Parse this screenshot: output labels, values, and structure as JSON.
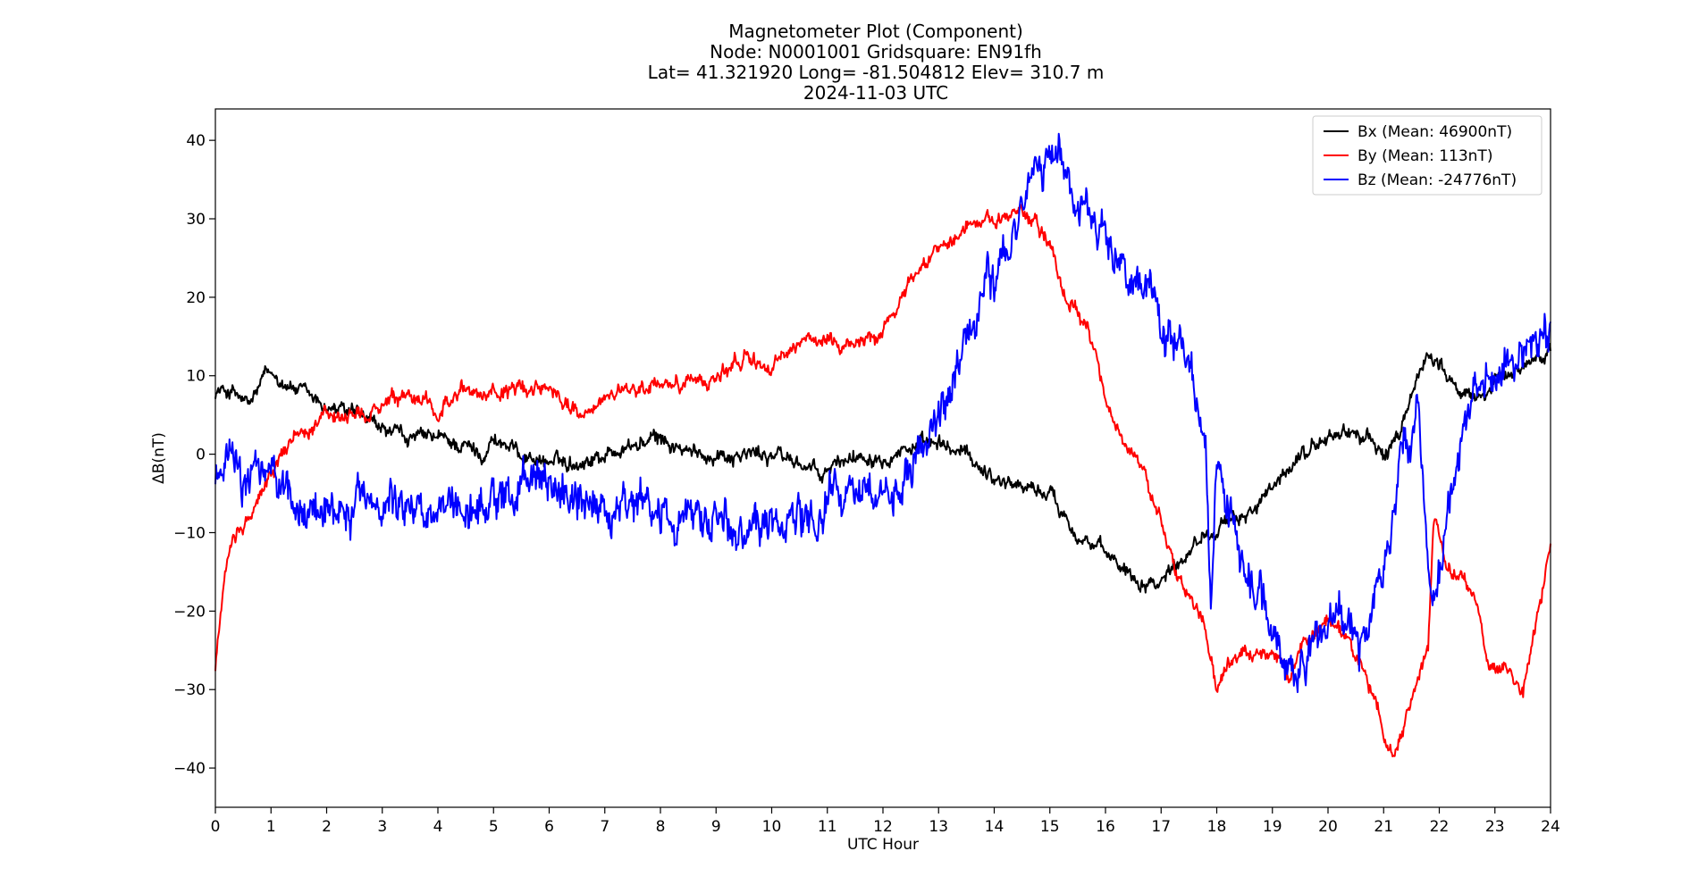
{
  "chart_data": {
    "type": "line",
    "title_lines": [
      "Magnetometer Plot (Component)",
      "Node:  N0001001     Gridsquare:  EN91fh",
      "Lat= 41.321920    Long= -81.504812    Elev= 310.7 m",
      "2024-11-03  UTC"
    ],
    "xlabel": "UTC Hour",
    "ylabel": "ΔB(nT)",
    "xlim": [
      0,
      24
    ],
    "ylim": [
      -45,
      44
    ],
    "xticks": [
      0,
      1,
      2,
      3,
      4,
      5,
      6,
      7,
      8,
      9,
      10,
      11,
      12,
      13,
      14,
      15,
      16,
      17,
      18,
      19,
      20,
      21,
      22,
      23,
      24
    ],
    "yticks": [
      40,
      30,
      20,
      10,
      0,
      -10,
      -20,
      -30,
      -40
    ],
    "ytick_labels": [
      "40",
      "30",
      "20",
      "10",
      "0",
      "−10",
      "−20",
      "−30",
      "−40"
    ],
    "grid": false,
    "legend_position": "top-right",
    "series": [
      {
        "name": "Bx (Mean: 46900nT)",
        "color": "#000000",
        "noise": 0.9,
        "x": [
          0,
          0.3,
          0.6,
          0.9,
          1.1,
          1.5,
          2.0,
          2.5,
          3.0,
          3.5,
          4.0,
          4.5,
          4.8,
          5.0,
          5.5,
          6.0,
          6.5,
          7.0,
          7.5,
          8.0,
          8.5,
          9.0,
          9.5,
          10.0,
          10.5,
          10.9,
          11.2,
          11.6,
          12.0,
          12.5,
          13.0,
          13.5,
          14.0,
          14.5,
          15.0,
          15.5,
          16.0,
          16.3,
          16.6,
          17.0,
          17.5,
          17.8,
          18.0,
          18.3,
          18.6,
          19.0,
          19.5,
          20.0,
          20.3,
          20.7,
          21.0,
          21.3,
          21.5,
          21.8,
          22.0,
          22.3,
          22.6,
          23.0,
          23.5,
          24.0
        ],
        "y": [
          8,
          8,
          6,
          10,
          10,
          8,
          6,
          5,
          3,
          2,
          2,
          1,
          0,
          2,
          0,
          -1,
          -1,
          0,
          1,
          2,
          0,
          0,
          0,
          0,
          -1,
          -3,
          -1,
          0,
          0,
          1,
          1,
          0,
          -3,
          -4,
          -5,
          -10,
          -13,
          -14,
          -16,
          -16,
          -12,
          -10,
          -9,
          -9,
          -7,
          -5,
          0,
          2,
          3,
          2,
          0,
          2,
          8,
          13,
          12,
          8,
          7,
          9,
          11,
          14
        ]
      },
      {
        "name": "By (Mean: 113nT)",
        "color": "#ff0000",
        "noise": 0.9,
        "x": [
          0,
          0.1,
          0.3,
          0.6,
          0.9,
          1.2,
          1.5,
          2.0,
          2.5,
          3.0,
          3.5,
          4.0,
          4.5,
          5.0,
          5.5,
          6.0,
          6.5,
          7.0,
          7.5,
          8.0,
          8.5,
          9.0,
          9.5,
          10.0,
          10.5,
          11.0,
          11.5,
          12.0,
          12.5,
          13.0,
          13.5,
          14.0,
          14.5,
          14.8,
          15.0,
          15.3,
          15.7,
          16.0,
          16.5,
          17.0,
          17.3,
          17.5,
          17.8,
          18.0,
          18.3,
          18.7,
          19.0,
          19.3,
          19.6,
          20.0,
          20.3,
          20.7,
          21.0,
          21.2,
          21.5,
          21.8,
          21.9,
          22.2,
          22.6,
          22.9,
          23.2,
          23.5,
          24.0
        ],
        "y": [
          -27,
          -20,
          -10,
          -8,
          -4,
          0,
          3,
          5,
          4,
          6,
          7,
          6,
          8,
          8,
          8,
          9,
          5,
          7,
          8,
          9,
          9,
          10,
          12,
          11,
          14,
          15,
          14,
          16,
          22,
          27,
          29,
          30,
          31,
          29,
          27,
          20,
          15,
          7,
          0,
          -8,
          -15,
          -18,
          -22,
          -30,
          -26,
          -26,
          -25,
          -28,
          -24,
          -21,
          -23,
          -28,
          -36,
          -39,
          -32,
          -25,
          -9,
          -15,
          -17,
          -28,
          -27,
          -31,
          -12
        ]
      },
      {
        "name": "Bz (Mean: -24776nT)",
        "color": "#0000ff",
        "noise": 2.5,
        "x": [
          0,
          0.15,
          0.3,
          0.5,
          0.7,
          0.9,
          1.2,
          1.5,
          2.0,
          2.5,
          3.0,
          3.5,
          4.0,
          4.5,
          5.0,
          5.5,
          6.0,
          6.5,
          7.0,
          7.5,
          8.0,
          8.5,
          9.0,
          9.5,
          10.0,
          10.5,
          10.9,
          11.1,
          11.5,
          12.0,
          12.5,
          12.8,
          13.0,
          13.5,
          14.0,
          14.5,
          14.8,
          15.0,
          15.2,
          15.5,
          16.0,
          16.5,
          17.0,
          17.5,
          17.8,
          17.9,
          18.0,
          18.5,
          19.0,
          19.3,
          19.6,
          20.0,
          20.3,
          20.6,
          21.0,
          21.3,
          21.6,
          21.9,
          22.2,
          22.6,
          23.0,
          23.5,
          24.0
        ],
        "y": [
          -3,
          -2,
          1,
          -5,
          -3,
          -2,
          -5,
          -8,
          -6,
          -7,
          -5,
          -6,
          -7,
          -8,
          -6,
          -3,
          -5,
          -6,
          -7,
          -7,
          -8,
          -8,
          -8,
          -9,
          -10,
          -8,
          -8,
          -5,
          -4,
          -4,
          -3,
          1,
          5,
          13,
          22,
          32,
          36,
          38,
          37,
          32,
          28,
          21,
          18,
          10,
          0,
          -20,
          0,
          -15,
          -22,
          -26,
          -25,
          -22,
          -20,
          -25,
          -15,
          0,
          5,
          -20,
          -5,
          8,
          9,
          12,
          17
        ]
      }
    ]
  }
}
